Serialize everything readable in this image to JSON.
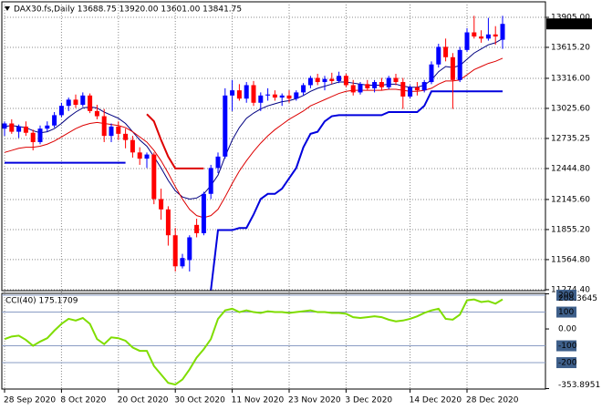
{
  "chart_data": [
    {
      "type": "candlestick",
      "title": "DAX30.fs,Daily  13688.75 13920.00 13601.00 13841.75",
      "categories": [
        "28 Sep 2020",
        null,
        null,
        null,
        null,
        null,
        null,
        null,
        "8 Oct 2020",
        null,
        null,
        null,
        null,
        null,
        null,
        null,
        "20 Oct 2020",
        null,
        null,
        null,
        null,
        null,
        null,
        null,
        "30 Oct 2020",
        null,
        null,
        null,
        null,
        null,
        null,
        null,
        "11 Nov 2020",
        null,
        null,
        null,
        null,
        null,
        null,
        null,
        "23 Nov 2020",
        null,
        null,
        null,
        null,
        null,
        null,
        null,
        "3 Dec 2020",
        null,
        null,
        null,
        null,
        null,
        null,
        null,
        null,
        "14 Dec 2020",
        null,
        null,
        null,
        null,
        null,
        null,
        null,
        "28 Dec 2020",
        null,
        null,
        null,
        null,
        null
      ],
      "open": [
        12830,
        12880,
        12800,
        12850,
        12790,
        12700,
        12830,
        12860,
        12960,
        13050,
        13110,
        13060,
        13150,
        13000,
        12950,
        12760,
        12850,
        12780,
        12720,
        12600,
        12540,
        12580,
        12150,
        12050,
        11800,
        11500,
        11560,
        11900,
        11820,
        12200,
        12450,
        12560,
        13150,
        13200,
        13120,
        13250,
        13080,
        13150,
        13160,
        13130,
        13150,
        13120,
        13180,
        13250,
        13320,
        13280,
        13310,
        13290,
        13340,
        13250,
        13180,
        13260,
        13220,
        13280,
        13230,
        13320,
        13280,
        13140,
        13230,
        13200,
        13280,
        13450,
        13620,
        13520,
        13300,
        13590,
        13760,
        13720,
        13700,
        13740,
        13688.75
      ],
      "high": [
        12900,
        12920,
        12870,
        12900,
        12820,
        12860,
        12900,
        12990,
        13080,
        13130,
        13160,
        13180,
        13170,
        13060,
        13020,
        12880,
        12900,
        12830,
        12760,
        12650,
        12600,
        12600,
        12250,
        12080,
        11870,
        11620,
        11800,
        11960,
        12220,
        12480,
        12600,
        13220,
        13300,
        13260,
        13280,
        13290,
        13180,
        13220,
        13200,
        13170,
        13200,
        13200,
        13270,
        13340,
        13360,
        13340,
        13370,
        13380,
        13360,
        13300,
        13280,
        13300,
        13300,
        13320,
        13340,
        13360,
        13320,
        13250,
        13280,
        13300,
        13480,
        13650,
        13700,
        13560,
        13620,
        13800,
        13920,
        13780,
        13900,
        13820,
        13920
      ],
      "low": [
        12760,
        12780,
        12740,
        12760,
        12620,
        12680,
        12800,
        12840,
        12940,
        13000,
        13030,
        13040,
        12980,
        12920,
        12700,
        12700,
        12720,
        12640,
        12550,
        12480,
        12450,
        12100,
        11950,
        11700,
        11450,
        11480,
        11450,
        11780,
        11800,
        12150,
        12400,
        12540,
        13000,
        13100,
        13080,
        13050,
        13000,
        13100,
        13100,
        13050,
        13080,
        13100,
        13150,
        13220,
        13250,
        13200,
        13260,
        13270,
        13230,
        13150,
        13160,
        13200,
        13180,
        13200,
        13210,
        13250,
        13020,
        13120,
        13150,
        13180,
        13260,
        13420,
        13480,
        13020,
        13280,
        13570,
        13700,
        13660,
        13680,
        13640,
        13601
      ],
      "close": [
        12880,
        12800,
        12850,
        12790,
        12700,
        12830,
        12860,
        12960,
        13050,
        13110,
        13060,
        13150,
        13000,
        12950,
        12760,
        12850,
        12780,
        12720,
        12600,
        12540,
        12580,
        12150,
        12050,
        11800,
        11500,
        11580,
        11780,
        11820,
        12200,
        12450,
        12560,
        13150,
        13200,
        13120,
        13250,
        13080,
        13150,
        13160,
        13130,
        13150,
        13120,
        13180,
        13250,
        13320,
        13280,
        13310,
        13290,
        13340,
        13250,
        13180,
        13260,
        13220,
        13280,
        13230,
        13320,
        13280,
        13140,
        13230,
        13200,
        13280,
        13450,
        13620,
        13520,
        13300,
        13590,
        13760,
        13720,
        13700,
        13740,
        13720,
        13841.75
      ],
      "up_color": "#0000ff",
      "down_color": "#ff0000",
      "series": [
        {
          "color": "#000080",
          "values": [
            12850,
            12860,
            12850,
            12840,
            12810,
            12790,
            12800,
            12830,
            12880,
            12940,
            12990,
            13030,
            13040,
            13030,
            12990,
            12960,
            12930,
            12880,
            12800,
            12720,
            12660,
            12560,
            12450,
            12330,
            12230,
            12170,
            12150,
            12160,
            12200,
            12280,
            12380,
            12560,
            12720,
            12840,
            12930,
            12980,
            13020,
            13050,
            13070,
            13090,
            13100,
            13120,
            13150,
            13190,
            13220,
            13240,
            13260,
            13280,
            13280,
            13270,
            13260,
            13250,
            13250,
            13250,
            13260,
            13260,
            13240,
            13230,
            13230,
            13250,
            13300,
            13380,
            13430,
            13420,
            13440,
            13500,
            13560,
            13600,
            13640,
            13660,
            13700
          ]
        },
        {
          "color": "#dd0000",
          "values": [
            12600,
            12620,
            12640,
            12650,
            12650,
            12660,
            12680,
            12710,
            12750,
            12790,
            12830,
            12860,
            12880,
            12890,
            12880,
            12870,
            12860,
            12840,
            12800,
            12750,
            12700,
            12620,
            12520,
            12400,
            12270,
            12150,
            12050,
            11990,
            11970,
            11990,
            12050,
            12170,
            12300,
            12420,
            12520,
            12610,
            12690,
            12760,
            12820,
            12870,
            12920,
            12960,
            13000,
            13050,
            13080,
            13110,
            13140,
            13170,
            13190,
            13200,
            13200,
            13200,
            13200,
            13200,
            13210,
            13210,
            13200,
            13190,
            13190,
            13200,
            13220,
            13260,
            13290,
            13290,
            13300,
            13350,
            13400,
            13430,
            13460,
            13480,
            13510
          ]
        }
      ],
      "stop_series": [
        {
          "color": "#0000dd",
          "values": [
            12500,
            12500,
            12500,
            12500,
            12500,
            12500,
            12500,
            12500,
            12500,
            12500,
            12500,
            12500,
            12500,
            12500,
            12500,
            12500,
            12500,
            12500,
            null,
            null,
            null,
            null,
            null,
            null,
            null,
            null,
            null,
            null,
            null,
            11270,
            11850,
            11850,
            11850,
            11870,
            11870,
            12000,
            12150,
            12200,
            12200,
            12250,
            12350,
            12450,
            12650,
            12780,
            12800,
            12900,
            12950,
            12960,
            12960,
            12960,
            12960,
            12960,
            12960,
            12960,
            12990,
            12990,
            12990,
            12990,
            12990,
            13050,
            13190,
            13190,
            13190,
            13190,
            13190,
            13190,
            13190,
            13190,
            13190,
            13190,
            13190
          ]
        },
        {
          "color": "#dd0000",
          "values": [
            null,
            null,
            null,
            null,
            null,
            null,
            null,
            null,
            null,
            null,
            null,
            null,
            null,
            null,
            null,
            null,
            null,
            null,
            null,
            null,
            12970,
            12900,
            12720,
            12560,
            12445,
            12445,
            12445,
            12445,
            12445,
            null,
            null,
            null,
            null,
            null,
            null,
            null,
            null,
            null,
            null,
            null,
            null,
            null,
            null,
            null,
            null,
            null,
            null,
            null,
            null,
            null,
            null,
            null,
            null,
            null,
            null,
            null,
            null,
            null,
            null,
            null,
            null,
            null,
            null,
            null,
            null,
            null,
            null,
            null,
            null,
            null,
            null
          ]
        }
      ],
      "ylim": [
        11265,
        14055
      ],
      "yticks": [
        {
          "value": 13905,
          "label": "13905.00"
        },
        {
          "value": 13615.2,
          "label": "13615.20"
        },
        {
          "value": 13316,
          "label": "13316.00"
        },
        {
          "value": 13025.6,
          "label": "13025.60"
        },
        {
          "value": 12735.25,
          "label": "12735.25"
        },
        {
          "value": 12444.8,
          "label": "12444.80"
        },
        {
          "value": 12145.6,
          "label": "12145.60"
        },
        {
          "value": 11855.2,
          "label": "11855.20"
        },
        {
          "value": 11564.8,
          "label": "11564.80"
        },
        {
          "value": 11274.4,
          "label": "11274.40"
        }
      ],
      "grid": true
    },
    {
      "type": "line",
      "title": "CCI(40) 175.1709",
      "color": "#7fdd00",
      "values": [
        -60,
        -45,
        -40,
        -65,
        -100,
        -75,
        -55,
        -10,
        30,
        60,
        50,
        65,
        30,
        -60,
        -90,
        -50,
        -55,
        -70,
        -110,
        -130,
        -130,
        -220,
        -270,
        -320,
        -330,
        -300,
        -240,
        -170,
        -120,
        -60,
        60,
        110,
        120,
        100,
        110,
        100,
        95,
        105,
        100,
        100,
        95,
        100,
        105,
        110,
        100,
        100,
        95,
        95,
        90,
        70,
        65,
        70,
        75,
        70,
        55,
        45,
        50,
        60,
        75,
        95,
        110,
        120,
        60,
        55,
        85,
        170,
        175,
        160,
        165,
        150,
        175.1709
      ],
      "ylim": [
        -353.8951,
        208.3645
      ],
      "yticks": [
        208.3645,
        {
          "value": 0,
          "label": "0.00"
        },
        -353.8951
      ],
      "levels": [
        200,
        100,
        -100,
        -200
      ],
      "level_color": "#8a9cc4"
    }
  ]
}
